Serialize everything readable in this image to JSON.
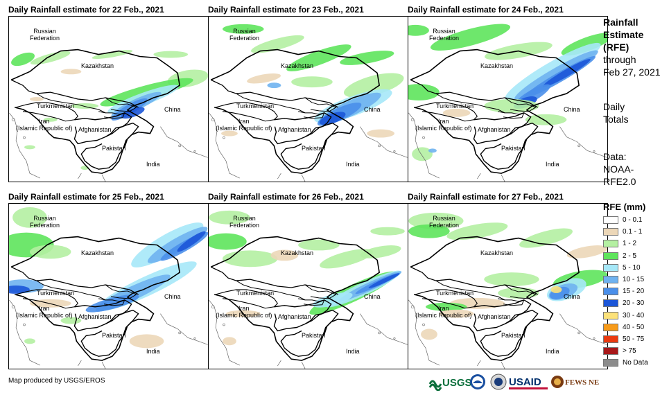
{
  "panels": [
    {
      "title": "Daily Rainfall estimate for 22 Feb., 2021",
      "rain": "p22"
    },
    {
      "title": "Daily Rainfall estimate for 23 Feb., 2021",
      "rain": "p23"
    },
    {
      "title": "Daily Rainfall estimate for 24 Feb., 2021",
      "rain": "p24"
    },
    {
      "title": "Daily Rainfall estimate for 25 Feb., 2021",
      "rain": "p25"
    },
    {
      "title": "Daily Rainfall estimate for 26 Feb., 2021",
      "rain": "p26"
    },
    {
      "title": "Daily Rainfall estimate for 27 Feb., 2021",
      "rain": "p27"
    }
  ],
  "map_labels": {
    "russia_line1": "Russian",
    "russia_line2": "Federation",
    "kazakhstan": "Kazakhstan",
    "turkmenistan": "Turkmenistan",
    "iran_line1": "Iran",
    "iran_line2": "(Islamic Republic of)",
    "afghanistan": "Afghanistan",
    "pakistan": "Pakistan",
    "china": "China",
    "india": "India"
  },
  "side": {
    "title_line1": "Rainfall",
    "title_line2": "Estimate",
    "title_line3": "(RFE)",
    "through_line1": "through",
    "through_line2": "Feb 27, 2021",
    "totals_line1": "Daily",
    "totals_line2": "Totals",
    "data_line1": "Data:",
    "data_line2": "NOAA-",
    "data_line3": "RFE2.0"
  },
  "legend": {
    "title": "RFE (mm)",
    "items": [
      {
        "label": "0 - 0.1",
        "color": "#ffffff"
      },
      {
        "label": "0.1 - 1",
        "color": "#ecd7b8"
      },
      {
        "label": "1 - 2",
        "color": "#b4f0a2"
      },
      {
        "label": "2 - 5",
        "color": "#5ee45c"
      },
      {
        "label": "5 - 10",
        "color": "#a6e8f8"
      },
      {
        "label": "10 - 15",
        "color": "#6fb2f0"
      },
      {
        "label": "15 - 20",
        "color": "#4a8fea"
      },
      {
        "label": "20 - 30",
        "color": "#1c56d8"
      },
      {
        "label": "30 - 40",
        "color": "#fce27a"
      },
      {
        "label": "40 - 50",
        "color": "#f79b1a"
      },
      {
        "label": "50 - 75",
        "color": "#ea3a10"
      },
      {
        "label": "> 75",
        "color": "#a8181a"
      },
      {
        "label": "No Data",
        "color": "#8c8c8c"
      }
    ]
  },
  "footer": {
    "credit": "Map produced by USGS/EROS"
  },
  "logos": {
    "usgs": "USGS",
    "usaid": "USAID",
    "fewsnet": "FEWS NET"
  }
}
